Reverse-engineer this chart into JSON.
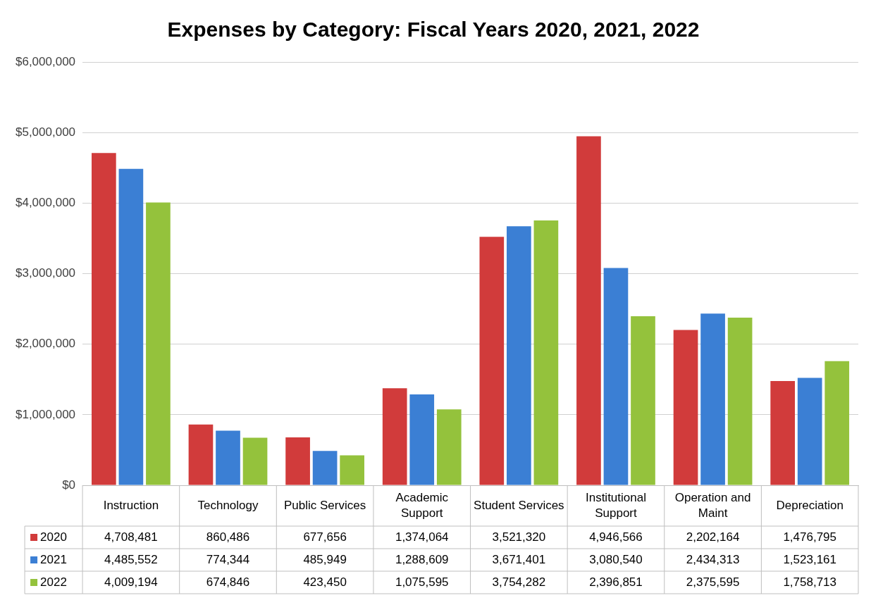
{
  "chart_data": {
    "type": "bar",
    "title": "Expenses by Category: Fiscal Years 2020, 2021, 2022",
    "categories": [
      "Instruction",
      "Technology",
      "Public Services",
      "Academic Support",
      "Student Services",
      "Institutional Support",
      "Operation and Maint",
      "Depreciation"
    ],
    "series": [
      {
        "name": "2020",
        "color": "#d13b3b",
        "values": [
          4708481,
          860486,
          677656,
          1374064,
          3521320,
          4946566,
          2202164,
          1476795
        ],
        "value_labels": [
          "4,708,481",
          "860,486",
          "677,656",
          "1,374,064",
          "3,521,320",
          "4,946,566",
          "2,202,164",
          "1,476,795"
        ]
      },
      {
        "name": "2021",
        "color": "#3b7fd4",
        "values": [
          4485552,
          774344,
          485949,
          1288609,
          3671401,
          3080540,
          2434313,
          1523161
        ],
        "value_labels": [
          "4,485,552",
          "774,344",
          "485,949",
          "1,288,609",
          "3,671,401",
          "3,080,540",
          "2,434,313",
          "1,523,161"
        ]
      },
      {
        "name": "2022",
        "color": "#94c23c",
        "values": [
          4009194,
          674846,
          423450,
          1075595,
          3754282,
          2396851,
          2375595,
          1758713
        ],
        "value_labels": [
          "4,009,194",
          "674,846",
          "423,450",
          "1,075,595",
          "3,754,282",
          "2,396,851",
          "2,375,595",
          "1,758,713"
        ]
      }
    ],
    "ylim": [
      0,
      6000000
    ],
    "yticks": [
      {
        "value": 0,
        "label": "$0"
      },
      {
        "value": 1000000,
        "label": "$1,000,000"
      },
      {
        "value": 2000000,
        "label": "$2,000,000"
      },
      {
        "value": 3000000,
        "label": "$3,000,000"
      },
      {
        "value": 4000000,
        "label": "$4,000,000"
      },
      {
        "value": 5000000,
        "label": "$5,000,000"
      },
      {
        "value": 6000000,
        "label": "$6,000,000"
      }
    ],
    "grid": "y",
    "legend": "bottom"
  }
}
